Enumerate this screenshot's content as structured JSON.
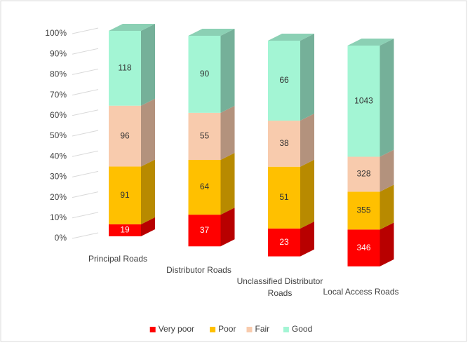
{
  "chart_data": {
    "type": "bar3d",
    "stacking": "percent",
    "categories": [
      "Principal Roads",
      "Distributor Roads",
      "Unclassified Distributor Roads",
      "Local Access Roads"
    ],
    "series": [
      {
        "name": "Very poor",
        "color": "#ff0000",
        "label_color": "#ffffff",
        "values": [
          19,
          37,
          23,
          346
        ]
      },
      {
        "name": "Poor",
        "color": "#ffc000",
        "label_color": "#333333",
        "values": [
          91,
          64,
          51,
          355
        ]
      },
      {
        "name": "Fair",
        "color": "#f8cbad",
        "label_color": "#333333",
        "values": [
          96,
          55,
          38,
          328
        ]
      },
      {
        "name": "Good",
        "color": "#a3f5d4",
        "label_color": "#333333",
        "values": [
          118,
          90,
          66,
          1043
        ]
      }
    ],
    "ylim": [
      0,
      100
    ],
    "yticks": [
      {
        "value": 0,
        "label": "0%"
      },
      {
        "value": 10,
        "label": "10%"
      },
      {
        "value": 20,
        "label": "20%"
      },
      {
        "value": 30,
        "label": "30%"
      },
      {
        "value": 40,
        "label": "40%"
      },
      {
        "value": 50,
        "label": "50%"
      },
      {
        "value": 60,
        "label": "60%"
      },
      {
        "value": 70,
        "label": "70%"
      },
      {
        "value": 80,
        "label": "80%"
      },
      {
        "value": 90,
        "label": "90%"
      },
      {
        "value": 100,
        "label": "100%"
      }
    ],
    "grid": true,
    "legend": "bottom"
  }
}
